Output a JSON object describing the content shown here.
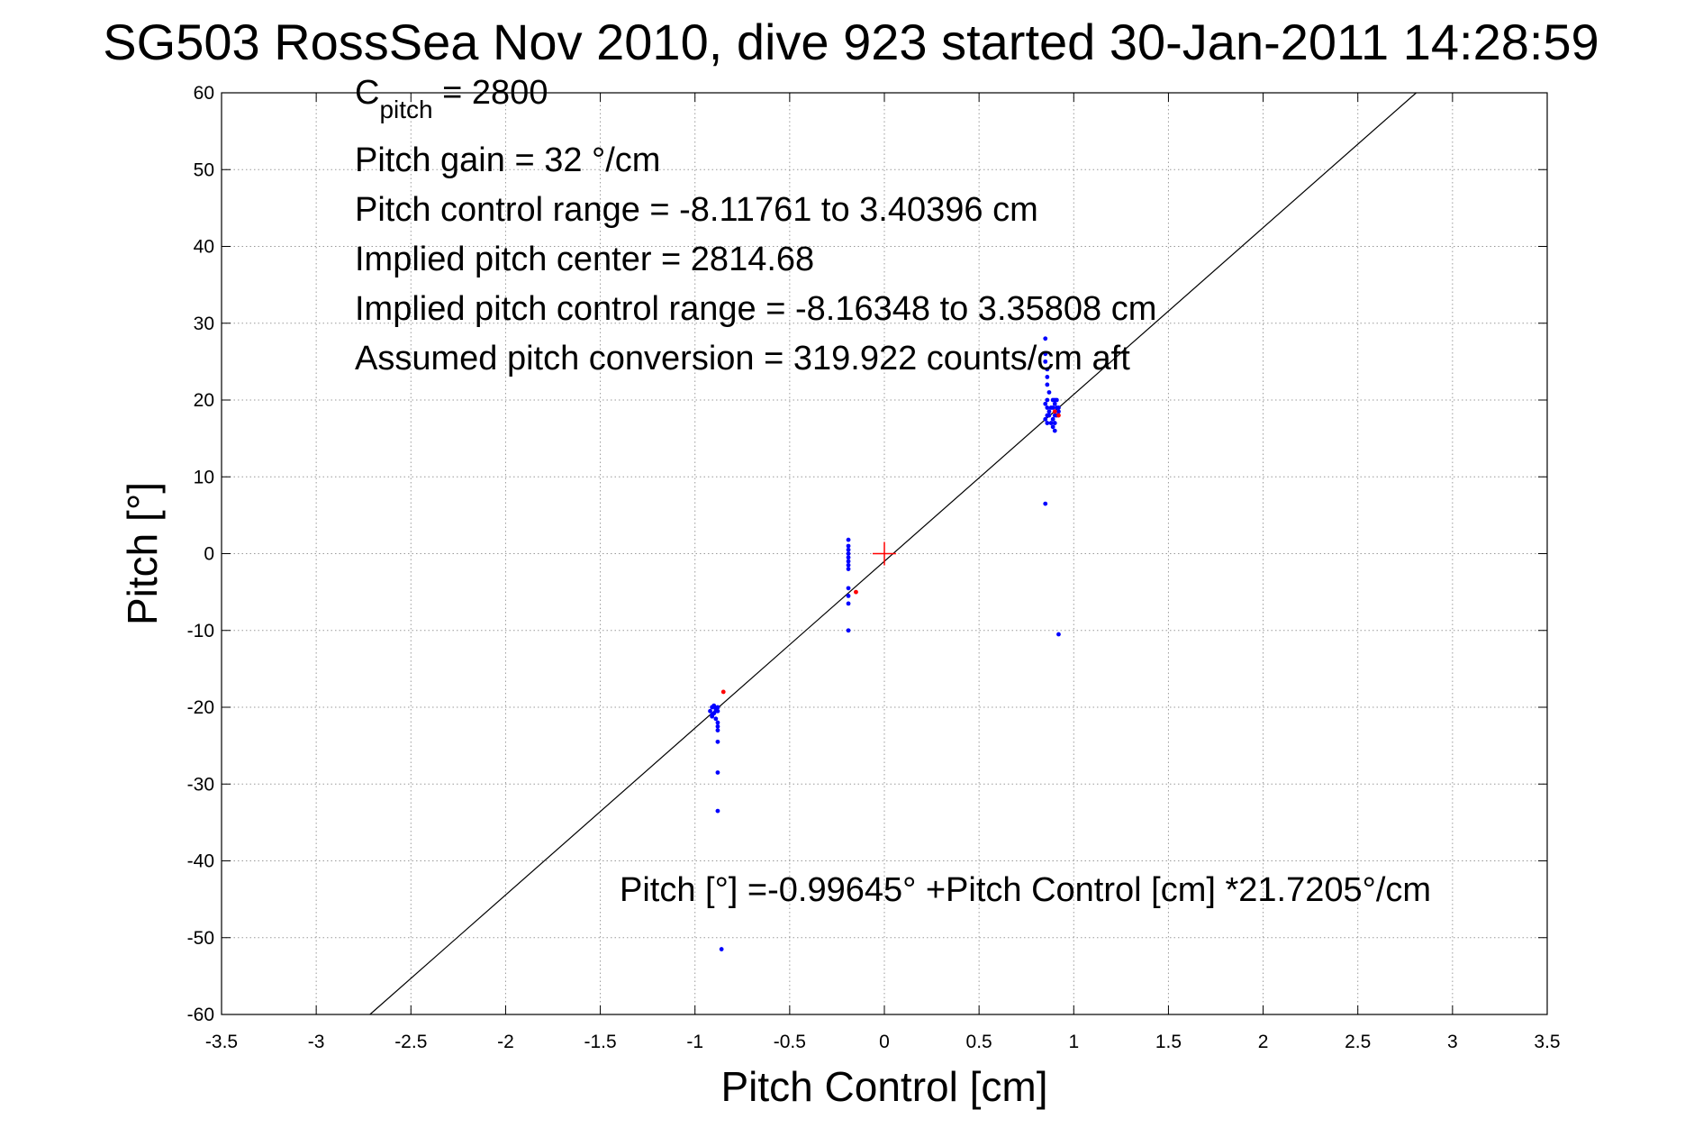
{
  "chart_data": {
    "type": "scatter",
    "title": "SG503 RossSea Nov 2010, dive 923 started 30-Jan-2011 14:28:59",
    "xlabel": "Pitch Control [cm]",
    "ylabel": "Pitch [°]",
    "xlim": [
      -3.5,
      3.5
    ],
    "ylim": [
      -60,
      60
    ],
    "xticks": [
      -3.5,
      -3,
      -2.5,
      -2,
      -1.5,
      -1,
      -0.5,
      0,
      0.5,
      1,
      1.5,
      2,
      2.5,
      3,
      3.5
    ],
    "yticks": [
      -60,
      -50,
      -40,
      -30,
      -20,
      -10,
      0,
      10,
      20,
      30,
      40,
      50,
      60
    ],
    "xtick_labels": [
      "-3.5",
      "-3",
      "-2.5",
      "-2",
      "-1.5",
      "-1",
      "-0.5",
      "0",
      "0.5",
      "1",
      "1.5",
      "2",
      "2.5",
      "3",
      "3.5"
    ],
    "ytick_labels": [
      "-60",
      "-50",
      "-40",
      "-30",
      "-20",
      "-10",
      "0",
      "10",
      "20",
      "30",
      "40",
      "50",
      "60"
    ],
    "grid": true,
    "fit_line": {
      "intercept": -0.99645,
      "slope": 21.7205,
      "color": "#000000"
    },
    "center_marker": {
      "x": 0,
      "y": 0,
      "color": "#ff0000"
    },
    "annotations": {
      "c_pitch_main": "C",
      "c_pitch_sub": "pitch",
      "c_pitch_value": " = 2800",
      "pitch_gain": "Pitch gain = 32 °/cm",
      "pitch_control_range": "Pitch control range = -8.11761 to 3.40396 cm",
      "implied_pitch_center": "Implied pitch center = 2814.68",
      "implied_pitch_control_range": "Implied pitch control range = -8.16348 to 3.35808 cm",
      "assumed_pitch_conversion": "Assumed pitch conversion = 319.922 counts/cm aft",
      "fit_equation": "Pitch [°] =-0.99645° +Pitch Control [cm] *21.7205°/cm"
    },
    "series": [
      {
        "color": "#0000ff",
        "x": [
          0.85,
          0.85,
          0.85,
          0.86,
          0.86,
          0.86,
          0.87,
          0.86,
          0.85,
          0.86,
          0.87,
          0.86,
          0.85,
          0.86,
          0.87,
          0.88,
          0.89,
          0.9,
          0.91,
          0.92,
          0.9,
          0.89,
          0.9,
          0.91,
          0.89,
          0.9,
          0.88,
          0.89,
          0.9,
          0.91,
          0.92,
          0.85,
          0.92,
          -0.19,
          -0.19,
          -0.19,
          -0.19,
          -0.19,
          -0.19,
          -0.19,
          -0.19,
          -0.19,
          -0.19,
          -0.19,
          -0.19,
          -0.92,
          -0.91,
          -0.9,
          -0.89,
          -0.88,
          -0.91,
          -0.9,
          -0.89,
          -0.88,
          -0.9,
          -0.91,
          -0.89,
          -0.88,
          -0.88,
          -0.88,
          -0.88,
          -0.88,
          -0.88,
          -0.86
        ],
        "y": [
          28,
          26,
          25,
          24,
          23,
          22,
          21,
          20,
          19.5,
          19,
          18.5,
          18,
          17.5,
          17,
          18,
          19,
          20,
          19.5,
          19,
          18.5,
          18,
          17.5,
          17,
          18,
          16.5,
          16,
          17,
          19,
          20,
          20,
          19,
          6.5,
          -10.5,
          1.8,
          1,
          0.5,
          0,
          -0.5,
          -1,
          -1.5,
          -2,
          -4.5,
          -5.5,
          -6.5,
          -10,
          -20.5,
          -20,
          -19.8,
          -20.2,
          -20.5,
          -21,
          -20.8,
          -20.5,
          -20,
          -19.8,
          -21.2,
          -21.5,
          -22,
          -22.5,
          -23,
          -24.5,
          -28.5,
          -33.5,
          -51.5
        ]
      },
      {
        "color": "#ff0000",
        "x": [
          0.92,
          0.9,
          -0.15,
          -0.85
        ],
        "y": [
          18,
          18.5,
          -5,
          -18
        ]
      }
    ]
  }
}
